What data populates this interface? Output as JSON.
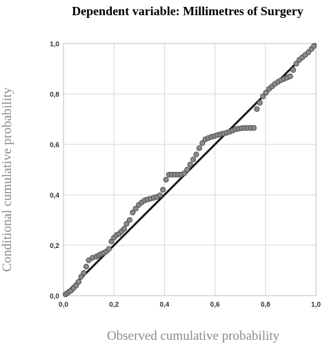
{
  "chart_data": {
    "type": "scatter",
    "title": "Dependent variable: Millimetres of Surgery",
    "xlabel": "Observed cumulative probability",
    "ylabel": "Conditional cumulative probability",
    "xlim": [
      0,
      1
    ],
    "ylim": [
      0,
      1
    ],
    "grid": true,
    "xticks": [
      0.0,
      0.2,
      0.4,
      0.6,
      0.8,
      1.0
    ],
    "yticks": [
      0.0,
      0.2,
      0.4,
      0.6,
      0.8,
      1.0
    ],
    "xtick_labels": [
      "0,0",
      "0,2",
      "0,4",
      "0,6",
      "0,8",
      "1,0"
    ],
    "ytick_labels": [
      "0,0",
      "0,2",
      "0,4",
      "0,6",
      "0,8",
      "1,0"
    ],
    "reference_line": [
      [
        0,
        0
      ],
      [
        1,
        1
      ]
    ],
    "series": [
      {
        "x": [
          0.008,
          0.015,
          0.022,
          0.03,
          0.04,
          0.05,
          0.06,
          0.07,
          0.08,
          0.09,
          0.1,
          0.115,
          0.13,
          0.14,
          0.15,
          0.16,
          0.17,
          0.18,
          0.19,
          0.2,
          0.21,
          0.22,
          0.23,
          0.24,
          0.25,
          0.262,
          0.274,
          0.286,
          0.298,
          0.31,
          0.322,
          0.334,
          0.346,
          0.358,
          0.37,
          0.382,
          0.394,
          0.406,
          0.418,
          0.43,
          0.442,
          0.454,
          0.466,
          0.478,
          0.49,
          0.502,
          0.514,
          0.526,
          0.538,
          0.55,
          0.562,
          0.574,
          0.586,
          0.598,
          0.61,
          0.622,
          0.634,
          0.646,
          0.658,
          0.67,
          0.682,
          0.694,
          0.706,
          0.718,
          0.73,
          0.742,
          0.754,
          0.766,
          0.778,
          0.79,
          0.802,
          0.814,
          0.826,
          0.838,
          0.85,
          0.862,
          0.874,
          0.886,
          0.898,
          0.91,
          0.922,
          0.934,
          0.946,
          0.958,
          0.97,
          0.982,
          0.992
        ],
        "y": [
          0.005,
          0.01,
          0.015,
          0.02,
          0.03,
          0.04,
          0.055,
          0.075,
          0.09,
          0.115,
          0.14,
          0.15,
          0.155,
          0.16,
          0.165,
          0.17,
          0.175,
          0.185,
          0.215,
          0.23,
          0.24,
          0.245,
          0.255,
          0.265,
          0.285,
          0.3,
          0.33,
          0.345,
          0.36,
          0.37,
          0.378,
          0.382,
          0.385,
          0.388,
          0.392,
          0.398,
          0.42,
          0.46,
          0.48,
          0.48,
          0.48,
          0.48,
          0.48,
          0.485,
          0.5,
          0.52,
          0.54,
          0.56,
          0.585,
          0.605,
          0.62,
          0.625,
          0.63,
          0.633,
          0.637,
          0.64,
          0.643,
          0.646,
          0.65,
          0.655,
          0.66,
          0.662,
          0.664,
          0.665,
          0.665,
          0.665,
          0.665,
          0.74,
          0.765,
          0.79,
          0.805,
          0.82,
          0.83,
          0.84,
          0.848,
          0.855,
          0.86,
          0.865,
          0.87,
          0.895,
          0.92,
          0.935,
          0.945,
          0.955,
          0.965,
          0.978,
          0.99
        ]
      }
    ]
  }
}
